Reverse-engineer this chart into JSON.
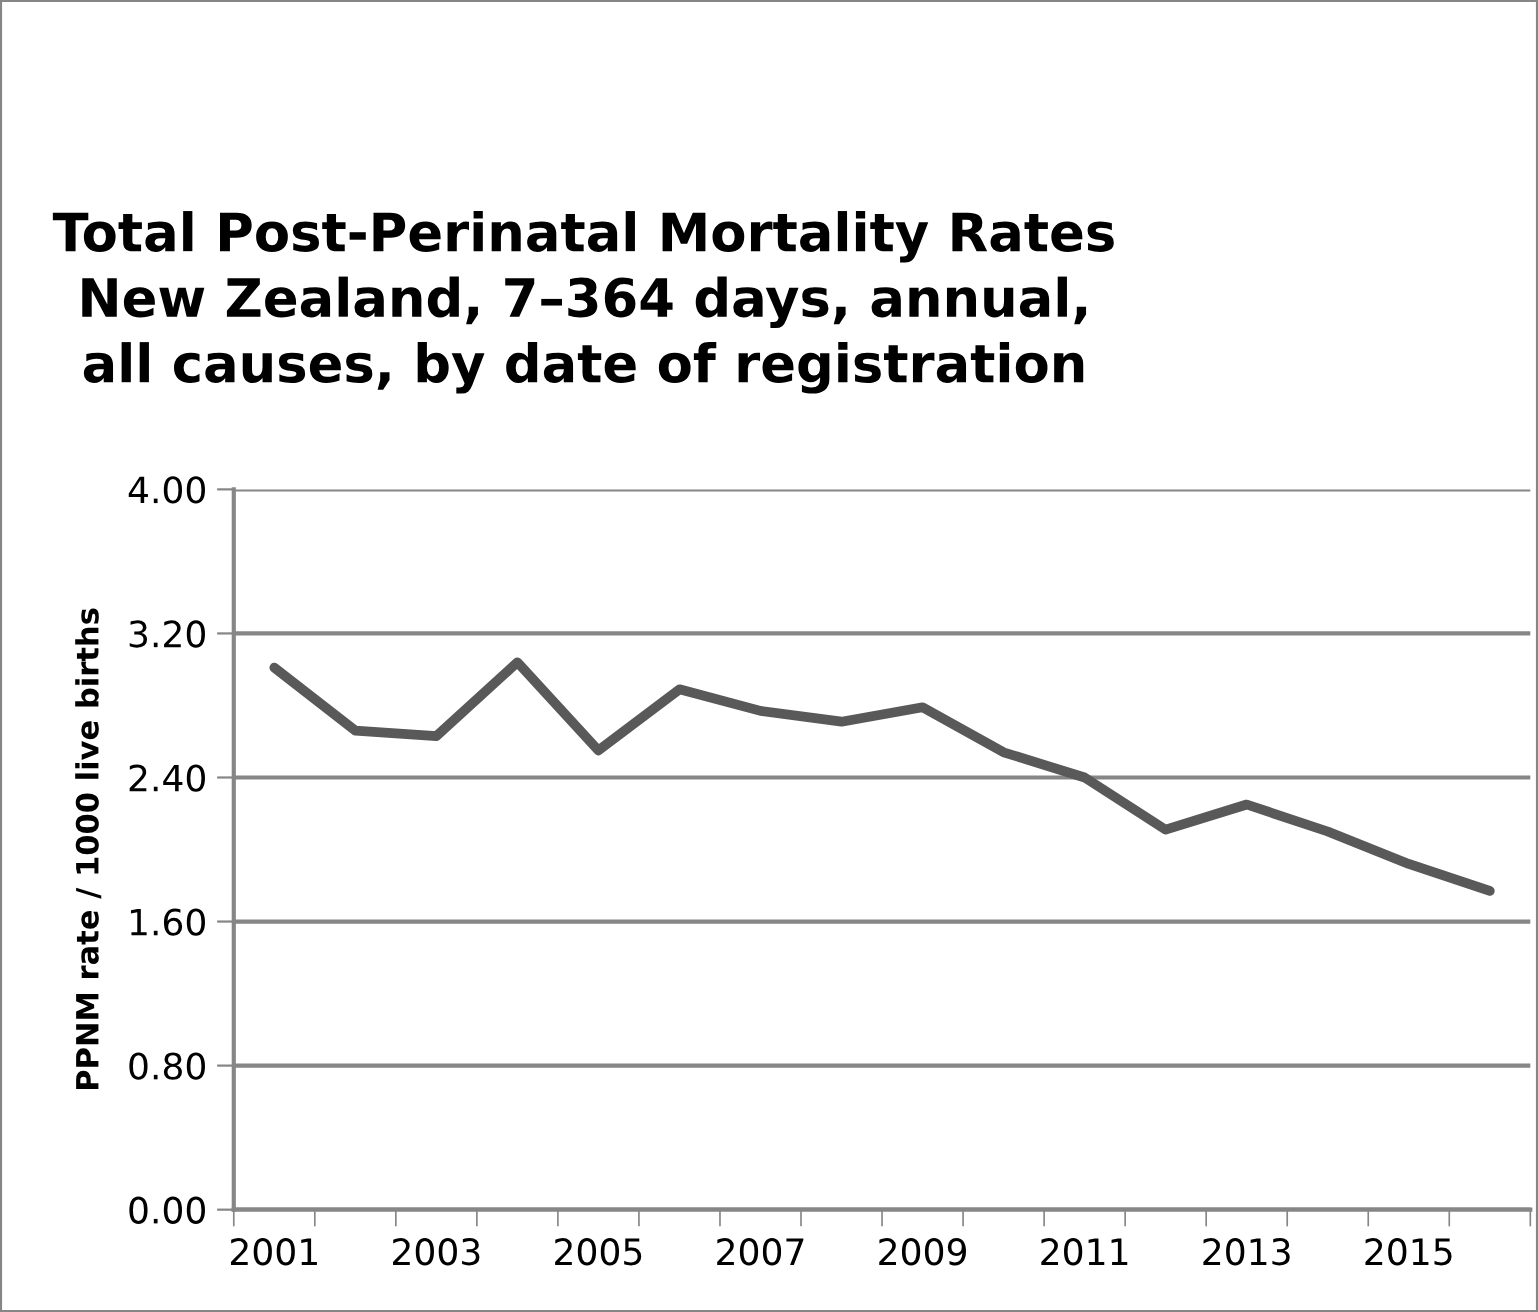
{
  "chart_data": {
    "type": "line",
    "title": "Total Post-Perinatal Mortality Rates\nNew Zealand, 7–364 days, annual,\nall causes, by date of registration",
    "ylabel": "PPNM rate / 1000 live births",
    "categories": [
      "2001",
      null,
      "2003",
      null,
      "2005",
      null,
      "2007",
      null,
      "2009",
      null,
      "2011",
      null,
      "2013",
      null,
      "2015",
      null
    ],
    "series": [
      {
        "color": "#595959",
        "values": [
          3.01,
          2.66,
          2.63,
          3.04,
          2.55,
          2.89,
          2.77,
          2.71,
          2.79,
          2.54,
          2.4,
          2.11,
          2.25,
          2.1,
          1.92,
          1.77
        ]
      }
    ],
    "ylim": [
      0,
      4
    ],
    "yticks": [
      {
        "value": 0,
        "label": "0.00"
      },
      {
        "value": 0.8,
        "label": "0.80"
      },
      {
        "value": 1.6,
        "label": "1.60"
      },
      {
        "value": 2.4,
        "label": "2.40"
      },
      {
        "value": 3.2,
        "label": "3.20"
      },
      {
        "value": 4,
        "label": "4.00"
      }
    ],
    "grid": "y",
    "marker": "none",
    "line_style": "solid",
    "legend": false
  }
}
